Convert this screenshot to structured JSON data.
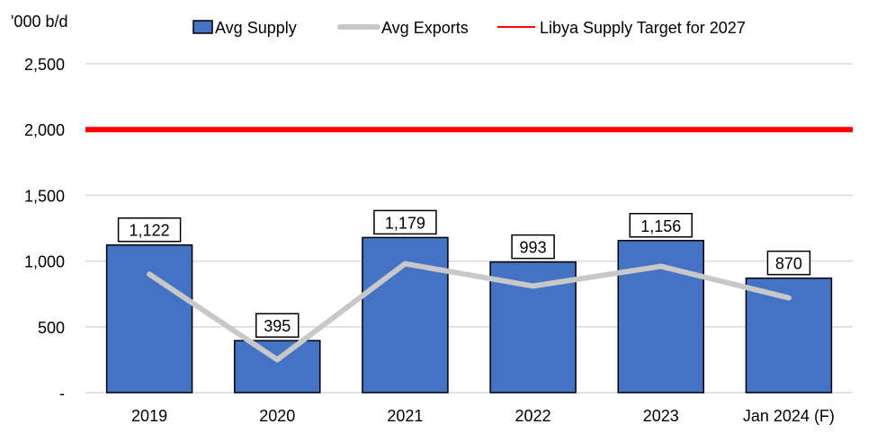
{
  "chart_data": {
    "type": "bar",
    "ylabel": "'000 b/d",
    "ylim": [
      0,
      2500
    ],
    "yticks": [
      0,
      500,
      1000,
      1500,
      2000,
      2500
    ],
    "ytick_labels": [
      "-",
      "500",
      "1,000",
      "1,500",
      "2,000",
      "2,500"
    ],
    "grid": true,
    "legend_placement": "top",
    "categories": [
      "2019",
      "2020",
      "2021",
      "2022",
      "2023",
      "Jan 2024 (F)"
    ],
    "series": [
      {
        "name": "Avg Supply",
        "type": "bar",
        "color": "#4472C4",
        "values": [
          1122,
          395,
          1179,
          993,
          1156,
          870
        ],
        "labels": [
          "1,122",
          "395",
          "1,179",
          "993",
          "1,156",
          "870"
        ]
      },
      {
        "name": "Avg Exports",
        "type": "line",
        "color": "#C8C8C8",
        "values": [
          900,
          250,
          980,
          810,
          960,
          720
        ]
      },
      {
        "name": "Libya Supply Target for 2027",
        "type": "line",
        "color": "#FF0000",
        "values": [
          2000,
          2000,
          2000,
          2000,
          2000,
          2000
        ]
      }
    ]
  }
}
